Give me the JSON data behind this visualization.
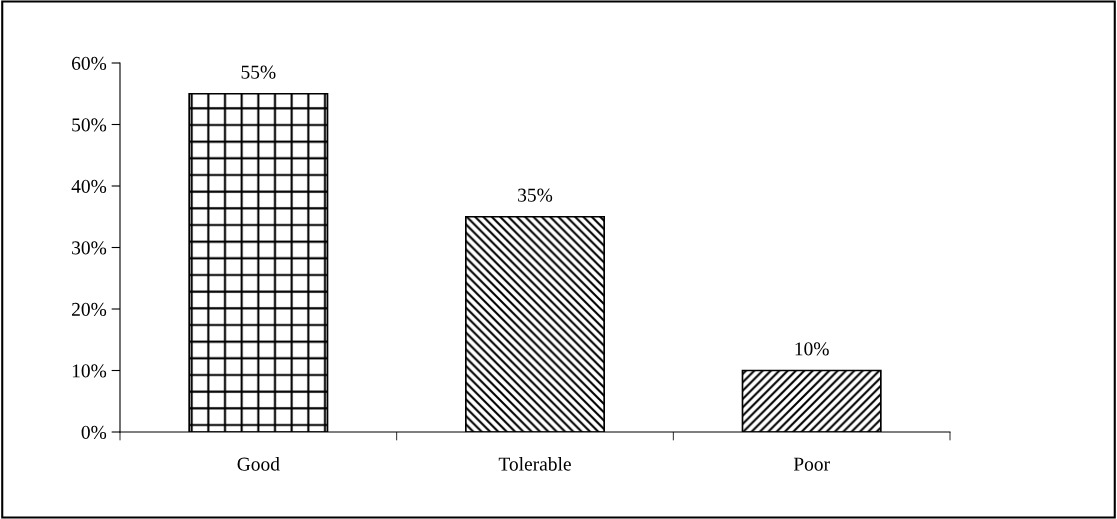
{
  "chart_data": {
    "type": "bar",
    "categories": [
      "Good",
      "Tolerable",
      "Poor"
    ],
    "values": [
      55,
      35,
      10
    ],
    "colors": [
      "#000000",
      "#000000",
      "#000000"
    ],
    "value_labels": [
      "55%",
      "35%",
      "10%"
    ],
    "ylim": [
      0,
      60
    ],
    "yticks": [
      {
        "value": 0,
        "label": "0%"
      },
      {
        "value": 10,
        "label": "10%"
      },
      {
        "value": 20,
        "label": "20%"
      },
      {
        "value": 30,
        "label": "30%"
      },
      {
        "value": 40,
        "label": "40%"
      },
      {
        "value": 50,
        "label": "50%"
      },
      {
        "value": 60,
        "label": "60%"
      }
    ],
    "grid": false,
    "legend": false
  }
}
